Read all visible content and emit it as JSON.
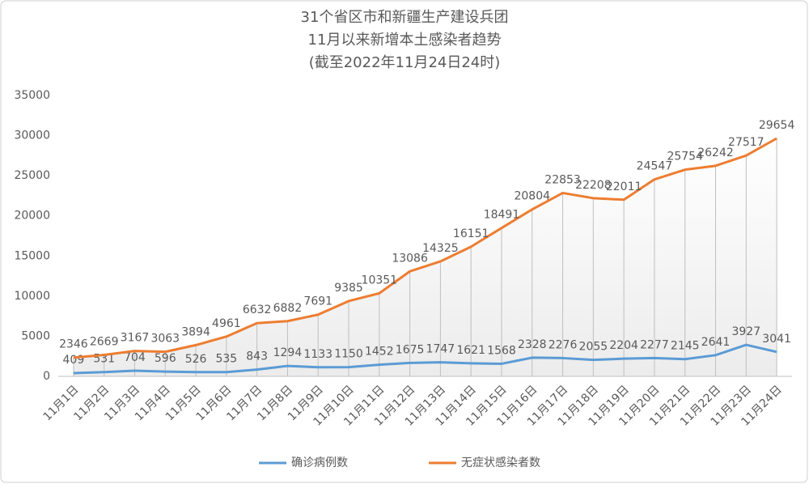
{
  "chart_data": {
    "type": "line",
    "title": [
      "31个省区市和新疆生产建设兵团",
      "11月以来新增本土感染者趋势"
    ],
    "subtitle": "(截至2022年11月24日24时)",
    "categories": [
      "11月1日",
      "11月2日",
      "11月3日",
      "11月4日",
      "11月5日",
      "11月6日",
      "11月7日",
      "11月8日",
      "11月9日",
      "11月10日",
      "11月11日",
      "11月12日",
      "11月13日",
      "11月14日",
      "11月15日",
      "11月16日",
      "11月17日",
      "11月18日",
      "11月19日",
      "11月20日",
      "11月21日",
      "11月22日",
      "11月23日",
      "11月24日"
    ],
    "series": [
      {
        "name": "确诊病例数",
        "color": "#5b9bd5",
        "values": [
          409,
          531,
          704,
          596,
          526,
          535,
          843,
          1294,
          1133,
          1150,
          1452,
          1675,
          1747,
          1621,
          1568,
          2328,
          2276,
          2055,
          2204,
          2277,
          2145,
          2641,
          3927,
          3041
        ]
      },
      {
        "name": "无症状感染者数",
        "color": "#ed7d31",
        "values": [
          2346,
          2669,
          3167,
          3063,
          3894,
          4961,
          6632,
          6882,
          7691,
          9385,
          10351,
          13086,
          14325,
          16151,
          18491,
          20804,
          22853,
          22208,
          22011,
          24547,
          25754,
          26242,
          27517,
          29654
        ]
      }
    ],
    "ylim": [
      0,
      35000
    ],
    "yticks": [
      0,
      5000,
      10000,
      15000,
      20000,
      25000,
      30000,
      35000
    ],
    "grid": false,
    "drop_lines": true,
    "legend": "bottom"
  }
}
